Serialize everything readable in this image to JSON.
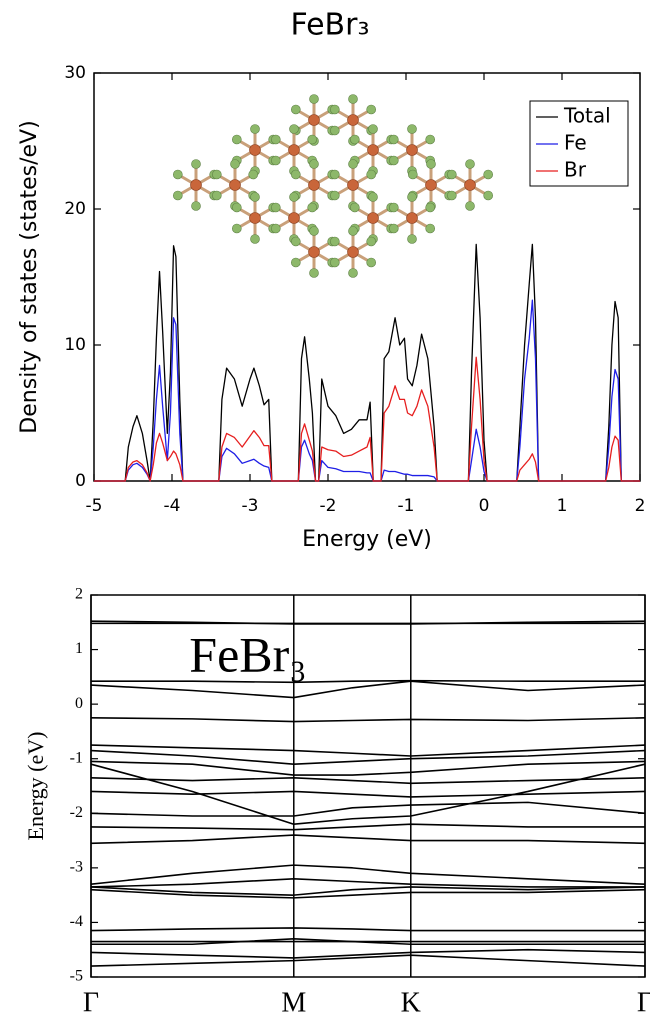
{
  "chart_data": [
    {
      "type": "line",
      "title": "FeBr₃",
      "xlabel": "Energy (eV)",
      "ylabel": "Density of states (states/eV)",
      "xlim": [
        -5,
        2
      ],
      "xticks": [
        -5,
        -4,
        -3,
        -2,
        -1,
        0,
        1,
        2
      ],
      "ylim": [
        0,
        30
      ],
      "yticks": [
        0,
        10,
        20,
        30
      ],
      "grid": false,
      "legend": "upper right",
      "x": [
        -5,
        -4.6,
        -4.56,
        -4.5,
        -4.45,
        -4.38,
        -4.32,
        -4.28,
        -4.24,
        -4.2,
        -4.16,
        -4.12,
        -4.06,
        -4.02,
        -3.98,
        -3.95,
        -3.9,
        -3.86,
        -3.4,
        -3.36,
        -3.3,
        -3.2,
        -3.1,
        -3.0,
        -2.95,
        -2.88,
        -2.82,
        -2.76,
        -2.72,
        -2.38,
        -2.34,
        -2.3,
        -2.24,
        -2.2,
        -2.16,
        -2.12,
        -2.08,
        -2.0,
        -1.9,
        -1.8,
        -1.7,
        -1.6,
        -1.5,
        -1.46,
        -1.42,
        -1.32,
        -1.28,
        -1.22,
        -1.14,
        -1.08,
        -1.02,
        -0.98,
        -0.92,
        -0.86,
        -0.8,
        -0.72,
        -0.64,
        -0.6,
        -0.2,
        -0.16,
        -0.1,
        -0.05,
        0,
        0.04,
        0.42,
        0.46,
        0.52,
        0.58,
        0.62,
        0.66,
        0.7,
        1.56,
        1.6,
        1.64,
        1.68,
        1.72,
        1.76,
        2
      ],
      "series": [
        {
          "name": "Total",
          "color": "#000000",
          "values": [
            0,
            0,
            2.5,
            4.0,
            4.8,
            3.5,
            1.5,
            0,
            4.5,
            10.5,
            15.4,
            11,
            3.5,
            8,
            17.3,
            16.5,
            6,
            0,
            0,
            6,
            8.3,
            7.5,
            5.5,
            7.5,
            8.3,
            7.0,
            5.6,
            6.0,
            0,
            0,
            9,
            10.6,
            7.5,
            5.0,
            0,
            0,
            7.5,
            5.5,
            4.8,
            3.5,
            3.8,
            4.5,
            4.5,
            5.8,
            0,
            0,
            9.0,
            9.5,
            12.0,
            10.0,
            10.5,
            7.5,
            7.0,
            8.5,
            10.8,
            9.0,
            4.0,
            0,
            0,
            8,
            17.4,
            12,
            3,
            0,
            0,
            4,
            10,
            14.5,
            17.4,
            12,
            0,
            0,
            4,
            10,
            13.2,
            12,
            0,
            0
          ]
        },
        {
          "name": "Fe",
          "color": "#1f1fe6",
          "values": [
            0,
            0,
            0.8,
            1.2,
            1.3,
            1.0,
            0.5,
            0,
            2.5,
            6.0,
            8.5,
            5.5,
            1.5,
            5,
            12,
            11.5,
            3.5,
            0,
            0,
            1.8,
            2.4,
            2.0,
            1.3,
            1.5,
            1.6,
            1.3,
            1.1,
            1.0,
            0,
            0,
            2.5,
            3.0,
            2.0,
            1.5,
            0,
            0,
            1.5,
            1.0,
            0.9,
            0.7,
            0.7,
            0.7,
            0.6,
            0.6,
            0,
            0,
            0.8,
            0.7,
            0.7,
            0.6,
            0.5,
            0.5,
            0.4,
            0.4,
            0.4,
            0.4,
            0.3,
            0,
            0,
            1.5,
            3.8,
            2.5,
            0.7,
            0,
            0,
            2.5,
            7.5,
            10.5,
            13.3,
            9,
            0,
            0,
            2.5,
            6.2,
            8.2,
            7.5,
            0,
            0
          ]
        },
        {
          "name": "Br",
          "color": "#e61f1f",
          "values": [
            0,
            0,
            1.0,
            1.4,
            1.5,
            1.2,
            0.6,
            0,
            1.2,
            2.8,
            3.5,
            2.8,
            1.5,
            1.8,
            2.2,
            2.0,
            1.2,
            0,
            0,
            2.5,
            3.5,
            3.2,
            2.5,
            3.3,
            3.7,
            3.2,
            2.6,
            2.6,
            0,
            0,
            3.5,
            4.2,
            3.0,
            2.2,
            0,
            0,
            2.5,
            2.3,
            2.2,
            1.8,
            1.9,
            2.2,
            2.5,
            3.2,
            0,
            0,
            5.0,
            5.5,
            7.0,
            6.0,
            6.0,
            5.0,
            4.8,
            5.5,
            6.7,
            5.5,
            2.5,
            0,
            0,
            4,
            9.1,
            6,
            1.5,
            0,
            0,
            0.8,
            1.2,
            1.6,
            2.0,
            1.4,
            0,
            0,
            1.0,
            2.5,
            3.3,
            3.0,
            0,
            0
          ]
        }
      ]
    },
    {
      "type": "line",
      "title": "FeBr₃",
      "ylabel": "Energy (eV)",
      "color": "#000000",
      "xlim": [
        0,
        2.732
      ],
      "xticks": [
        {
          "value": 0,
          "label": "Γ"
        },
        {
          "value": 1,
          "label": "M"
        },
        {
          "value": 1.577,
          "label": "K"
        },
        {
          "value": 2.732,
          "label": "Γ"
        }
      ],
      "ylim": [
        -5,
        2
      ],
      "yticks": [
        -5,
        -4,
        -3,
        -2,
        -1,
        0,
        1,
        2
      ],
      "xgrid": true,
      "x": [
        0,
        0.5,
        1,
        1.289,
        1.577,
        2.155,
        2.732
      ],
      "series": [
        {
          "values": [
            1.52,
            1.5,
            1.47,
            1.47,
            1.47,
            1.5,
            1.52
          ]
        },
        {
          "values": [
            1.48,
            1.48,
            1.48,
            1.48,
            1.48,
            1.48,
            1.48
          ]
        },
        {
          "values": [
            0.42,
            0.42,
            0.4,
            0.42,
            0.43,
            0.42,
            0.42
          ]
        },
        {
          "values": [
            0.35,
            0.25,
            0.12,
            0.3,
            0.42,
            0.25,
            0.35
          ]
        },
        {
          "values": [
            -0.25,
            -0.27,
            -0.32,
            -0.3,
            -0.28,
            -0.3,
            -0.25
          ]
        },
        {
          "values": [
            -0.75,
            -0.8,
            -0.85,
            -0.9,
            -0.95,
            -0.85,
            -0.75
          ]
        },
        {
          "values": [
            -0.85,
            -0.95,
            -1.1,
            -1.05,
            -1.0,
            -0.95,
            -0.85
          ]
        },
        {
          "values": [
            -1.05,
            -1.1,
            -1.3,
            -1.3,
            -1.25,
            -1.1,
            -1.05
          ]
        },
        {
          "values": [
            -1.1,
            -1.6,
            -2.2,
            -2.1,
            -2.05,
            -1.6,
            -1.1
          ]
        },
        {
          "values": [
            -1.35,
            -1.4,
            -1.35,
            -1.4,
            -1.45,
            -1.4,
            -1.35
          ]
        },
        {
          "values": [
            -1.6,
            -1.65,
            -1.6,
            -1.65,
            -1.7,
            -1.65,
            -1.6
          ]
        },
        {
          "values": [
            -2.0,
            -2.05,
            -2.05,
            -1.9,
            -1.85,
            -1.8,
            -2.0
          ]
        },
        {
          "values": [
            -2.25,
            -2.27,
            -2.3,
            -2.25,
            -2.2,
            -2.25,
            -2.25
          ]
        },
        {
          "values": [
            -2.55,
            -2.5,
            -2.4,
            -2.45,
            -2.5,
            -2.5,
            -2.55
          ]
        },
        {
          "values": [
            -3.3,
            -3.1,
            -2.95,
            -3.0,
            -3.1,
            -3.2,
            -3.3
          ]
        },
        {
          "values": [
            -3.35,
            -3.3,
            -3.2,
            -3.25,
            -3.3,
            -3.35,
            -3.35
          ]
        },
        {
          "values": [
            -3.35,
            -3.45,
            -3.5,
            -3.4,
            -3.35,
            -3.4,
            -3.35
          ]
        },
        {
          "values": [
            -3.4,
            -3.5,
            -3.55,
            -3.5,
            -3.45,
            -3.45,
            -3.4
          ]
        },
        {
          "values": [
            -4.15,
            -4.12,
            -4.1,
            -4.12,
            -4.15,
            -4.15,
            -4.15
          ]
        },
        {
          "values": [
            -4.35,
            -4.35,
            -4.35,
            -4.35,
            -4.35,
            -4.35,
            -4.35
          ]
        },
        {
          "values": [
            -4.4,
            -4.4,
            -4.3,
            -4.35,
            -4.4,
            -4.4,
            -4.4
          ]
        },
        {
          "values": [
            -4.55,
            -4.6,
            -4.65,
            -4.6,
            -4.55,
            -4.5,
            -4.55
          ]
        },
        {
          "values": [
            -4.8,
            -4.75,
            -4.7,
            -4.65,
            -4.6,
            -4.7,
            -4.8
          ]
        }
      ]
    }
  ]
}
